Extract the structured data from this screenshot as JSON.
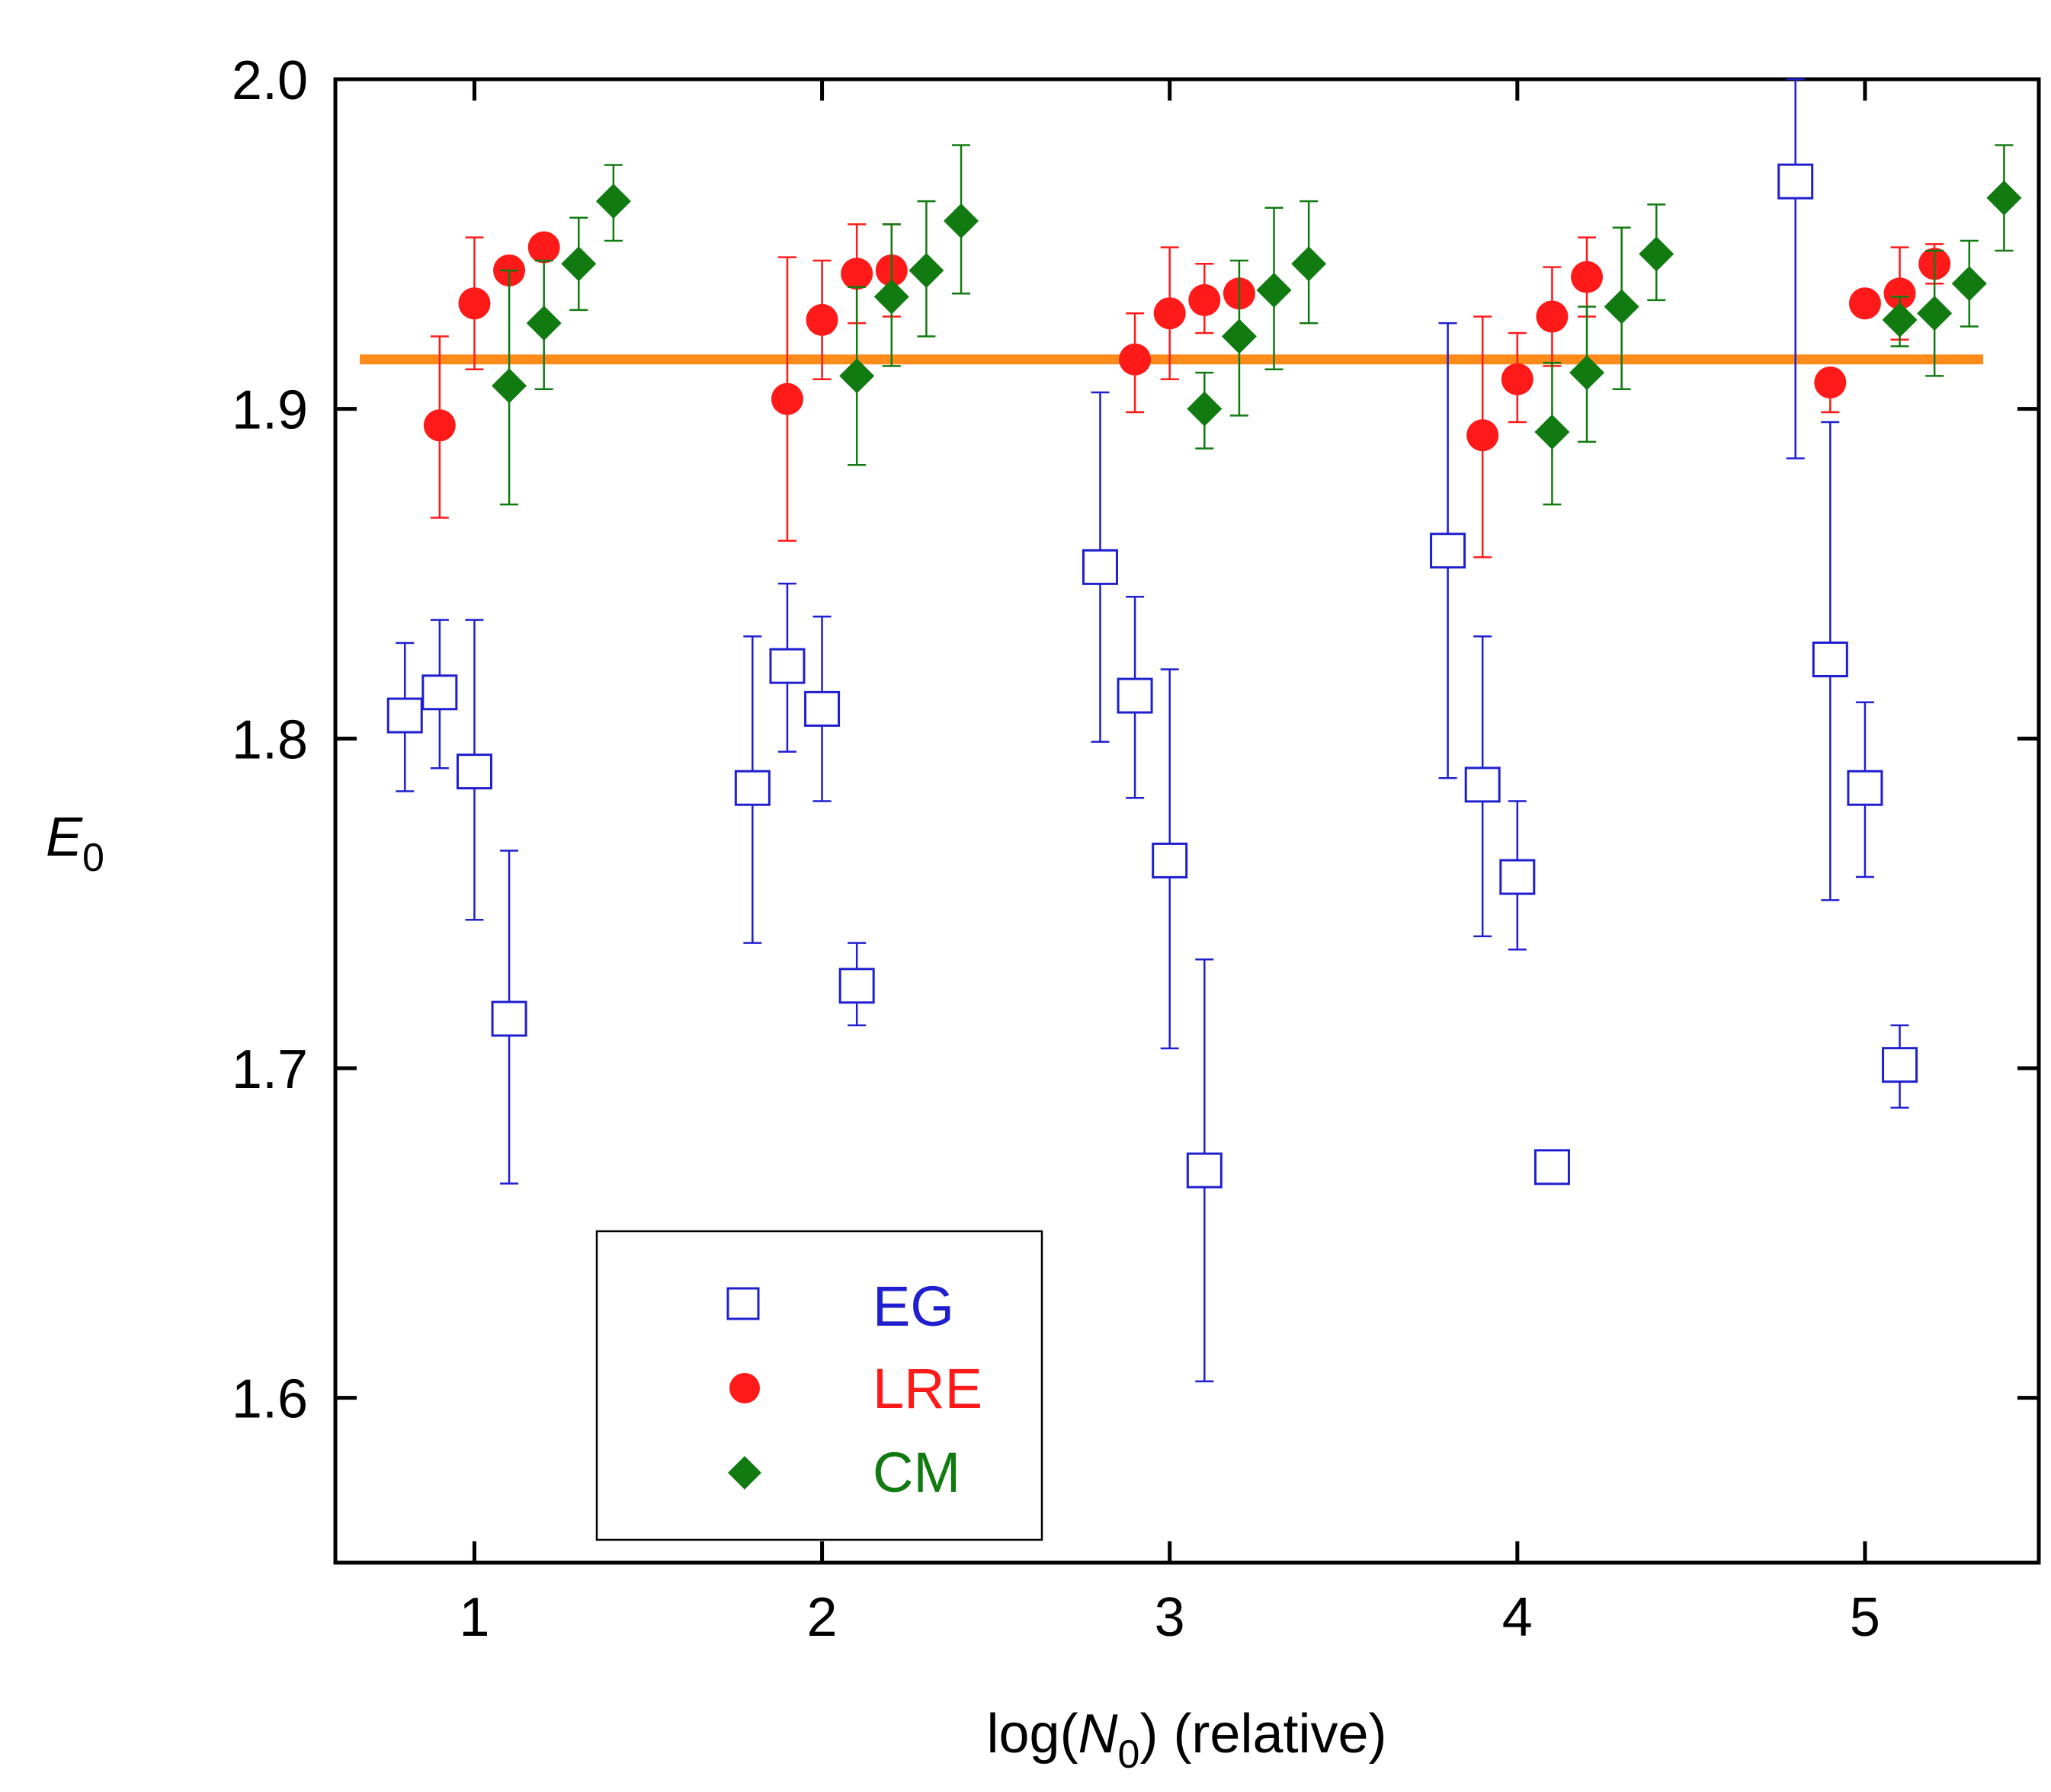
{
  "chart_data": {
    "type": "scatter",
    "title": "",
    "xlabel": {
      "pre": "log(",
      "var": "N",
      "sub": "0",
      "post": ") (relative)"
    },
    "ylabel": {
      "var": "E",
      "sub": "0"
    },
    "xlim": [
      0.6,
      5.5
    ],
    "ylim": [
      1.55,
      2.0
    ],
    "x_ticks": [
      1,
      2,
      3,
      4,
      5
    ],
    "x_tick_labels": [
      "1",
      "2",
      "3",
      "4",
      "5"
    ],
    "y_ticks": [
      1.6,
      1.7,
      1.8,
      1.9,
      2.0
    ],
    "y_tick_labels": [
      "1.6",
      "1.7",
      "1.8",
      "1.9",
      "2.0"
    ],
    "reference_line": {
      "y": 1.915,
      "x_range": [
        0.67,
        5.34
      ],
      "color": "#ff8c1a"
    },
    "legend": {
      "position": "lower-left",
      "entries": [
        "EG",
        "LRE",
        "CM"
      ]
    },
    "series": [
      {
        "name": "EG",
        "marker": "open-square",
        "color": "#1f1fd0",
        "points": [
          {
            "x": 0.8,
            "y": 1.807,
            "lo": 1.784,
            "hi": 1.829
          },
          {
            "x": 0.9,
            "y": 1.814,
            "lo": 1.791,
            "hi": 1.836
          },
          {
            "x": 1.0,
            "y": 1.79,
            "lo": 1.745,
            "hi": 1.836
          },
          {
            "x": 1.1,
            "y": 1.715,
            "lo": 1.665,
            "hi": 1.766
          },
          {
            "x": 1.8,
            "y": 1.785,
            "lo": 1.738,
            "hi": 1.831
          },
          {
            "x": 1.9,
            "y": 1.822,
            "lo": 1.796,
            "hi": 1.847
          },
          {
            "x": 2.0,
            "y": 1.809,
            "lo": 1.781,
            "hi": 1.837
          },
          {
            "x": 2.1,
            "y": 1.725,
            "lo": 1.713,
            "hi": 1.738
          },
          {
            "x": 2.8,
            "y": 1.852,
            "lo": 1.799,
            "hi": 1.905
          },
          {
            "x": 2.9,
            "y": 1.813,
            "lo": 1.782,
            "hi": 1.843
          },
          {
            "x": 3.0,
            "y": 1.763,
            "lo": 1.706,
            "hi": 1.821
          },
          {
            "x": 3.1,
            "y": 1.669,
            "lo": 1.605,
            "hi": 1.733
          },
          {
            "x": 3.8,
            "y": 1.857,
            "lo": 1.788,
            "hi": 1.926
          },
          {
            "x": 3.9,
            "y": 1.786,
            "lo": 1.74,
            "hi": 1.831
          },
          {
            "x": 4.0,
            "y": 1.758,
            "lo": 1.736,
            "hi": 1.781
          },
          {
            "x": 4.1,
            "y": 1.67,
            "lo": 1.67,
            "hi": 1.67
          },
          {
            "x": 4.8,
            "y": 1.969,
            "lo": 1.885,
            "hi": 2.0
          },
          {
            "x": 4.9,
            "y": 1.824,
            "lo": 1.751,
            "hi": 1.896
          },
          {
            "x": 5.0,
            "y": 1.785,
            "lo": 1.758,
            "hi": 1.811
          },
          {
            "x": 5.1,
            "y": 1.701,
            "lo": 1.688,
            "hi": 1.713
          }
        ]
      },
      {
        "name": "LRE",
        "marker": "filled-circle",
        "color": "#ff1a1a",
        "points": [
          {
            "x": 0.9,
            "y": 1.895,
            "lo": 1.867,
            "hi": 1.922
          },
          {
            "x": 1.0,
            "y": 1.932,
            "lo": 1.912,
            "hi": 1.952
          },
          {
            "x": 1.1,
            "y": 1.942,
            "lo": 1.942,
            "hi": 1.942
          },
          {
            "x": 1.2,
            "y": 1.949,
            "lo": 1.949,
            "hi": 1.949
          },
          {
            "x": 1.9,
            "y": 1.903,
            "lo": 1.86,
            "hi": 1.946
          },
          {
            "x": 2.0,
            "y": 1.927,
            "lo": 1.909,
            "hi": 1.945
          },
          {
            "x": 2.1,
            "y": 1.941,
            "lo": 1.926,
            "hi": 1.956
          },
          {
            "x": 2.2,
            "y": 1.942,
            "lo": 1.928,
            "hi": 1.956
          },
          {
            "x": 2.9,
            "y": 1.915,
            "lo": 1.899,
            "hi": 1.929
          },
          {
            "x": 3.0,
            "y": 1.929,
            "lo": 1.909,
            "hi": 1.949
          },
          {
            "x": 3.1,
            "y": 1.933,
            "lo": 1.923,
            "hi": 1.944
          },
          {
            "x": 3.2,
            "y": 1.935,
            "lo": 1.935,
            "hi": 1.935
          },
          {
            "x": 3.9,
            "y": 1.892,
            "lo": 1.855,
            "hi": 1.928
          },
          {
            "x": 4.0,
            "y": 1.909,
            "lo": 1.896,
            "hi": 1.923
          },
          {
            "x": 4.1,
            "y": 1.928,
            "lo": 1.913,
            "hi": 1.943
          },
          {
            "x": 4.2,
            "y": 1.94,
            "lo": 1.928,
            "hi": 1.952
          },
          {
            "x": 4.9,
            "y": 1.908,
            "lo": 1.899,
            "hi": 1.908
          },
          {
            "x": 5.0,
            "y": 1.932,
            "lo": 1.932,
            "hi": 1.932
          },
          {
            "x": 5.1,
            "y": 1.935,
            "lo": 1.921,
            "hi": 1.949
          },
          {
            "x": 5.2,
            "y": 1.944,
            "lo": 1.938,
            "hi": 1.95
          }
        ]
      },
      {
        "name": "CM",
        "marker": "filled-diamond",
        "color": "#117a11",
        "points": [
          {
            "x": 1.1,
            "y": 1.907,
            "lo": 1.871,
            "hi": 1.942
          },
          {
            "x": 1.2,
            "y": 1.926,
            "lo": 1.906,
            "hi": 1.945
          },
          {
            "x": 1.3,
            "y": 1.944,
            "lo": 1.93,
            "hi": 1.958
          },
          {
            "x": 1.4,
            "y": 1.963,
            "lo": 1.951,
            "hi": 1.974
          },
          {
            "x": 2.1,
            "y": 1.91,
            "lo": 1.883,
            "hi": 1.937
          },
          {
            "x": 2.2,
            "y": 1.934,
            "lo": 1.913,
            "hi": 1.956
          },
          {
            "x": 2.3,
            "y": 1.942,
            "lo": 1.922,
            "hi": 1.963
          },
          {
            "x": 2.4,
            "y": 1.957,
            "lo": 1.935,
            "hi": 1.98
          },
          {
            "x": 3.1,
            "y": 1.9,
            "lo": 1.888,
            "hi": 1.911
          },
          {
            "x": 3.2,
            "y": 1.922,
            "lo": 1.898,
            "hi": 1.945
          },
          {
            "x": 3.3,
            "y": 1.936,
            "lo": 1.912,
            "hi": 1.961
          },
          {
            "x": 3.4,
            "y": 1.944,
            "lo": 1.926,
            "hi": 1.963
          },
          {
            "x": 4.1,
            "y": 1.893,
            "lo": 1.871,
            "hi": 1.914
          },
          {
            "x": 4.2,
            "y": 1.911,
            "lo": 1.89,
            "hi": 1.931
          },
          {
            "x": 4.3,
            "y": 1.931,
            "lo": 1.906,
            "hi": 1.955
          },
          {
            "x": 4.4,
            "y": 1.947,
            "lo": 1.933,
            "hi": 1.962
          },
          {
            "x": 5.1,
            "y": 1.927,
            "lo": 1.919,
            "hi": 1.934
          },
          {
            "x": 5.2,
            "y": 1.929,
            "lo": 1.91,
            "hi": 1.948
          },
          {
            "x": 5.3,
            "y": 1.938,
            "lo": 1.925,
            "hi": 1.951
          },
          {
            "x": 5.4,
            "y": 1.964,
            "lo": 1.948,
            "hi": 1.98
          }
        ]
      }
    ]
  }
}
